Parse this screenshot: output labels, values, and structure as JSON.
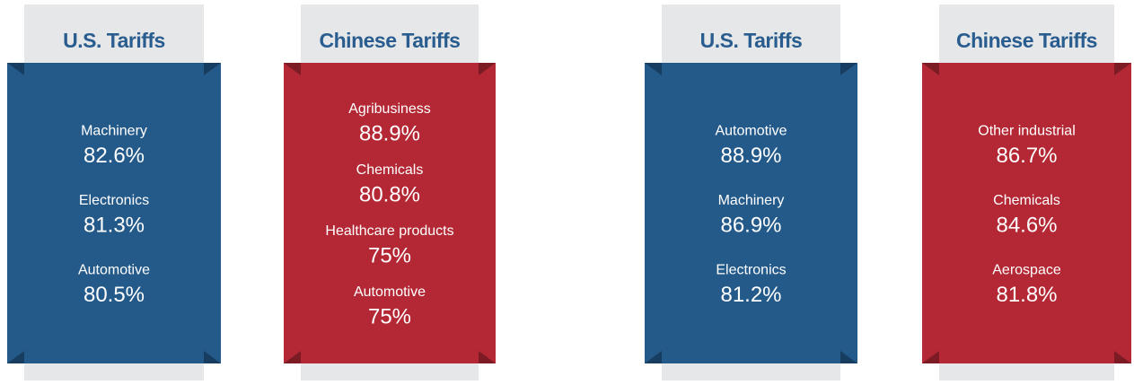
{
  "panels": [
    {
      "title": "U.S. Tariffs",
      "theme": "blue",
      "items": [
        {
          "label": "Machinery",
          "value": "82.6%"
        },
        {
          "label": "Electronics",
          "value": "81.3%"
        },
        {
          "label": "Automotive",
          "value": "80.5%"
        }
      ]
    },
    {
      "title": "Chinese Tariffs",
      "theme": "red",
      "items": [
        {
          "label": "Agribusiness",
          "value": "88.9%"
        },
        {
          "label": "Chemicals",
          "value": "80.8%"
        },
        {
          "label": "Healthcare products",
          "value": "75%"
        },
        {
          "label": "Automotive",
          "value": "75%"
        }
      ]
    },
    {
      "title": "U.S. Tariffs",
      "theme": "blue",
      "items": [
        {
          "label": "Automotive",
          "value": "88.9%"
        },
        {
          "label": "Machinery",
          "value": "86.9%"
        },
        {
          "label": "Electronics",
          "value": "81.2%"
        }
      ]
    },
    {
      "title": "Chinese Tariffs",
      "theme": "red",
      "items": [
        {
          "label": "Other industrial",
          "value": "86.7%"
        },
        {
          "label": "Chemicals",
          "value": "84.6%"
        },
        {
          "label": "Aerospace",
          "value": "81.8%"
        }
      ]
    }
  ]
}
